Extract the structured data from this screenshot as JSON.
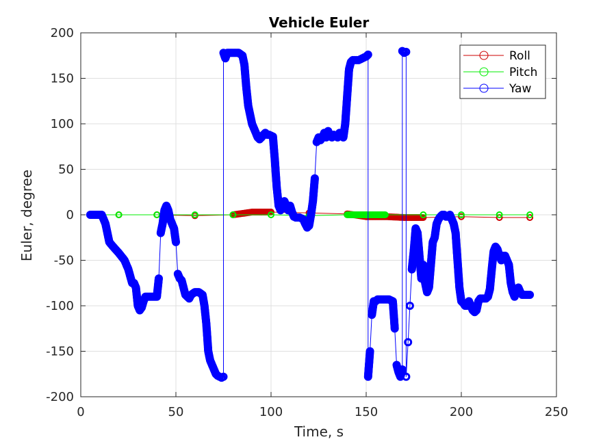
{
  "chart_data": {
    "type": "scatter",
    "title": "Vehicle Euler",
    "xlabel": "Time, s",
    "ylabel": "Euler, degree",
    "xlim": [
      0,
      250
    ],
    "ylim": [
      -200,
      200
    ],
    "xticks": [
      0,
      50,
      100,
      150,
      200,
      250
    ],
    "yticks": [
      -200,
      -150,
      -100,
      -50,
      0,
      50,
      100,
      150,
      200
    ],
    "xtick_labels": [
      "0",
      "50",
      "100",
      "150",
      "200",
      "250"
    ],
    "ytick_labels": [
      "-200",
      "-150",
      "-100",
      "-50",
      "0",
      "50",
      "100",
      "150",
      "200"
    ],
    "grid": true,
    "legend_position": "top-right",
    "series": [
      {
        "name": "Roll",
        "color": "#cc0000",
        "marker": "circle-open",
        "x": [
          5,
          20,
          40,
          60,
          80,
          90,
          100,
          120,
          140,
          150,
          160,
          170,
          180,
          200,
          220,
          236
        ],
        "y": [
          0,
          0,
          0,
          -1,
          0,
          3,
          3,
          2,
          1,
          -2,
          -2,
          -3,
          -3,
          -2,
          -3,
          -3
        ]
      },
      {
        "name": "Pitch",
        "color": "#00ee00",
        "marker": "circle-open",
        "x": [
          5,
          20,
          40,
          60,
          80,
          100,
          120,
          140,
          150,
          160,
          180,
          200,
          220,
          236
        ],
        "y": [
          0,
          0,
          0,
          0,
          0,
          0,
          -1,
          0,
          0,
          0,
          0,
          0,
          0,
          0
        ]
      },
      {
        "name": "Yaw",
        "color": "#0000ff",
        "marker": "circle-open",
        "segments": [
          {
            "x": [
              5,
              8,
              11,
              13,
              15,
              17,
              20,
              23,
              25,
              27,
              28,
              29,
              30,
              31,
              32,
              33,
              34,
              36,
              38,
              40,
              41,
              42,
              43,
              44,
              45,
              46,
              47,
              48,
              49,
              50,
              51,
              52,
              53,
              54,
              55,
              56,
              57,
              58,
              60,
              62,
              64,
              65,
              66,
              67,
              68,
              69,
              70,
              71,
              72,
              73,
              74,
              75
            ],
            "y": [
              0,
              0,
              0,
              -10,
              -30,
              -35,
              -42,
              -50,
              -60,
              -75,
              -75,
              -80,
              -100,
              -105,
              -102,
              -95,
              -90,
              -90,
              -90,
              -90,
              -70,
              -20,
              -10,
              5,
              10,
              5,
              -5,
              -10,
              -15,
              -30,
              -65,
              -70,
              -72,
              -80,
              -88,
              -90,
              -92,
              -88,
              -85,
              -85,
              -88,
              -100,
              -120,
              -150,
              -160,
              -165,
              -170,
              -175,
              -177,
              -178,
              -179,
              -178
            ]
          },
          {
            "x": [
              75,
              76,
              77,
              80,
              83,
              85,
              86,
              87,
              88,
              89,
              90,
              91,
              92,
              93,
              94,
              95,
              96,
              97,
              98,
              99,
              100,
              101,
              102,
              103,
              104,
              105,
              106,
              107,
              108,
              109,
              110,
              111,
              112,
              113,
              114,
              115,
              116,
              117,
              118,
              119,
              120,
              121,
              122,
              123,
              124,
              125,
              126,
              127,
              128,
              129,
              130,
              131,
              132,
              133,
              134,
              135,
              136,
              137,
              138,
              139,
              140,
              141,
              142,
              143,
              144,
              145,
              146,
              147,
              148,
              149,
              150,
              151
            ],
            "y": [
              178,
              172,
              178,
              178,
              178,
              175,
              165,
              140,
              120,
              110,
              100,
              95,
              90,
              85,
              83,
              85,
              88,
              90,
              88,
              88,
              87,
              86,
              60,
              30,
              10,
              5,
              8,
              15,
              10,
              5,
              10,
              3,
              -2,
              -3,
              -3,
              -3,
              -4,
              -5,
              -10,
              -14,
              -12,
              0,
              15,
              40,
              80,
              85,
              82,
              85,
              90,
              85,
              92,
              86,
              85,
              88,
              86,
              85,
              90,
              88,
              85,
              100,
              130,
              160,
              168,
              170,
              170,
              170,
              170,
              171,
              172,
              173,
              174,
              176
            ]
          },
          {
            "x": [
              151,
              152,
              153,
              154,
              155,
              156,
              158,
              160,
              162,
              164,
              165,
              166,
              167,
              168,
              169
            ],
            "y": [
              -178,
              -150,
              -110,
              -95,
              -95,
              -93,
              -93,
              -93,
              -93,
              -95,
              -125,
              -165,
              -173,
              -178,
              -170
            ]
          },
          {
            "x": [
              169,
              170,
              171
            ],
            "y": [
              180,
              178,
              179
            ]
          },
          {
            "x": [
              171,
              172,
              173,
              174,
              175,
              176,
              177,
              178,
              179,
              180,
              181,
              182,
              183,
              184,
              185,
              186,
              187,
              188,
              189,
              190,
              191,
              192,
              193,
              194,
              195,
              196,
              197,
              198,
              199,
              200,
              201,
              202,
              203,
              204,
              205,
              206,
              207,
              208,
              209,
              210,
              211,
              212,
              213,
              214,
              215,
              216,
              217,
              218,
              219,
              220,
              221,
              222,
              223,
              224,
              225,
              226,
              227,
              228,
              229,
              230,
              231,
              232,
              233,
              234,
              235,
              236
            ],
            "y": [
              -178,
              -140,
              -100,
              -60,
              -40,
              -15,
              -20,
              -45,
              -70,
              -55,
              -75,
              -85,
              -80,
              -55,
              -30,
              -25,
              -10,
              -5,
              -2,
              0,
              0,
              -2,
              -2,
              0,
              -5,
              -10,
              -20,
              -50,
              -80,
              -95,
              -97,
              -100,
              -100,
              -95,
              -100,
              -105,
              -107,
              -105,
              -95,
              -92,
              -92,
              -92,
              -92,
              -90,
              -82,
              -60,
              -40,
              -35,
              -38,
              -45,
              -50,
              -45,
              -45,
              -50,
              -55,
              -75,
              -85,
              -90,
              -82,
              -80,
              -85,
              -88,
              -88,
              -88,
              -88,
              -88
            ]
          }
        ]
      }
    ]
  }
}
